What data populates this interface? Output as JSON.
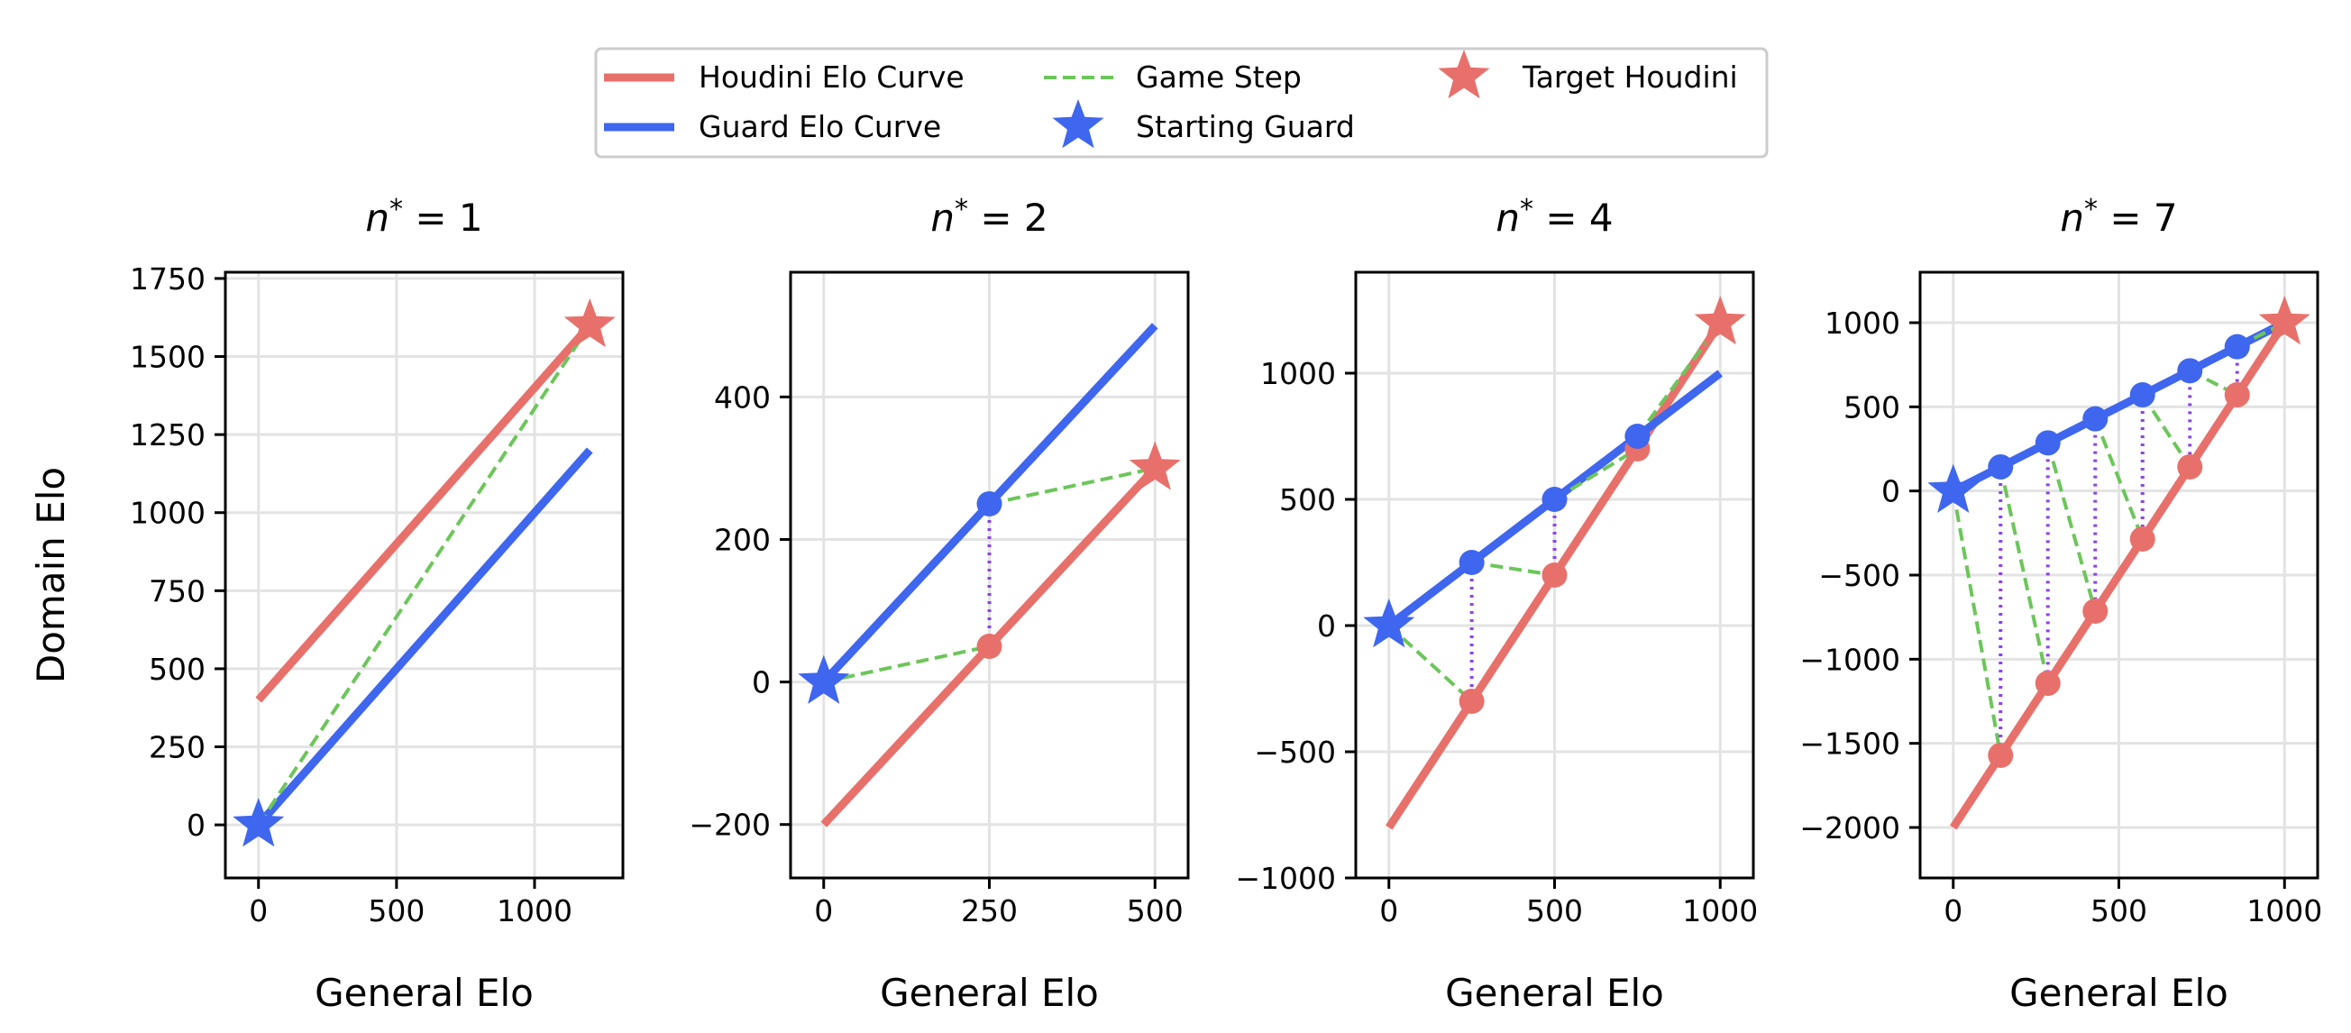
{
  "colors": {
    "houdini": "#e8706b",
    "guard": "#3f66ee",
    "game_step": "#6cc65a",
    "link": "#8b44ee",
    "grid": "#e3e3e3"
  },
  "legend": {
    "placement": "top-center",
    "items": [
      {
        "label": "Houdini Elo Curve",
        "kind": "line",
        "color": "#e8706b"
      },
      {
        "label": "Game Step",
        "kind": "dashed",
        "color": "#6cc65a"
      },
      {
        "label": "Target Houdini",
        "kind": "star",
        "color": "#e8706b"
      },
      {
        "label": "Guard Elo Curve",
        "kind": "line",
        "color": "#3f66ee"
      },
      {
        "label": "Starting Guard",
        "kind": "star",
        "color": "#3f66ee"
      }
    ]
  },
  "chart_data": [
    {
      "type": "line",
      "title": "n* = 1",
      "title_main": "n",
      "title_sup": "*",
      "title_rest": " = 1",
      "xlabel": "General Elo",
      "ylabel": "Domain Elo",
      "xlim": [
        -120,
        1320
      ],
      "ylim": [
        -170,
        1770
      ],
      "xticks": [
        0,
        500,
        1000
      ],
      "yticks": [
        0,
        250,
        500,
        750,
        1000,
        1250,
        1500,
        1750
      ],
      "grid": true,
      "houdini": {
        "x": [
          0,
          1200
        ],
        "y": [
          400,
          1600
        ]
      },
      "guard": {
        "x": [
          0,
          1200
        ],
        "y": [
          0,
          1200
        ]
      },
      "guard_points": [],
      "houdini_points": [],
      "game_steps": [
        [
          0,
          0,
          1200,
          1600
        ]
      ],
      "links": [],
      "start_star": [
        0,
        0
      ],
      "target_star": [
        1200,
        1600
      ]
    },
    {
      "type": "line",
      "title": "n* = 2",
      "title_main": "n",
      "title_sup": "*",
      "title_rest": " = 2",
      "xlabel": "General Elo",
      "ylabel": "",
      "xlim": [
        -50,
        550
      ],
      "ylim": [
        -275,
        575
      ],
      "xticks": [
        0,
        250,
        500
      ],
      "yticks": [
        -200,
        0,
        200,
        400
      ],
      "grid": true,
      "houdini": {
        "x": [
          0,
          500
        ],
        "y": [
          -200,
          300
        ]
      },
      "guard": {
        "x": [
          0,
          500
        ],
        "y": [
          0,
          500
        ]
      },
      "guard_points": [
        [
          250,
          250
        ]
      ],
      "houdini_points": [
        [
          250,
          50
        ]
      ],
      "game_steps": [
        [
          0,
          0,
          250,
          50
        ],
        [
          250,
          250,
          500,
          300
        ]
      ],
      "links": [
        [
          250,
          250,
          250,
          50
        ]
      ],
      "start_star": [
        0,
        0
      ],
      "target_star": [
        500,
        300
      ]
    },
    {
      "type": "line",
      "title": "n* = 4",
      "title_main": "n",
      "title_sup": "*",
      "title_rest": " = 4",
      "xlabel": "General Elo",
      "ylabel": "",
      "xlim": [
        -100,
        1100
      ],
      "ylim": [
        -1000,
        1400
      ],
      "xticks": [
        0,
        500,
        1000
      ],
      "yticks": [
        -1000,
        -500,
        0,
        500,
        1000
      ],
      "grid": true,
      "houdini": {
        "x": [
          0,
          1000
        ],
        "y": [
          -800,
          1200
        ]
      },
      "guard": {
        "x": [
          0,
          1000
        ],
        "y": [
          0,
          1000
        ]
      },
      "guard_points": [
        [
          250,
          250
        ],
        [
          500,
          500
        ],
        [
          750,
          750
        ]
      ],
      "houdini_points": [
        [
          250,
          -300
        ],
        [
          500,
          200
        ],
        [
          750,
          700
        ]
      ],
      "game_steps": [
        [
          0,
          0,
          250,
          -300
        ],
        [
          250,
          250,
          500,
          200
        ],
        [
          500,
          500,
          750,
          700
        ],
        [
          750,
          750,
          1000,
          1200
        ]
      ],
      "links": [
        [
          250,
          250,
          250,
          -300
        ],
        [
          500,
          500,
          500,
          200
        ],
        [
          750,
          750,
          750,
          700
        ]
      ],
      "start_star": [
        0,
        0
      ],
      "target_star": [
        1000,
        1200
      ]
    },
    {
      "type": "line",
      "title": "n* = 7",
      "title_main": "n",
      "title_sup": "*",
      "title_rest": " = 7",
      "xlabel": "General Elo",
      "ylabel": "",
      "xlim": [
        -100,
        1100
      ],
      "ylim": [
        -2300,
        1300
      ],
      "xticks": [
        0,
        500,
        1000
      ],
      "yticks": [
        -2000,
        -1500,
        -1000,
        -500,
        0,
        500,
        1000
      ],
      "grid": true,
      "houdini": {
        "x": [
          0,
          1000
        ],
        "y": [
          -2000,
          1000
        ]
      },
      "guard": {
        "x": [
          0,
          1000
        ],
        "y": [
          0,
          1000
        ]
      },
      "guard_points": [
        [
          142.9,
          142.9
        ],
        [
          285.7,
          285.7
        ],
        [
          428.6,
          428.6
        ],
        [
          571.4,
          571.4
        ],
        [
          714.3,
          714.3
        ],
        [
          857.1,
          857.1
        ]
      ],
      "houdini_points": [
        [
          142.9,
          -1571.4
        ],
        [
          285.7,
          -1142.9
        ],
        [
          428.6,
          -714.3
        ],
        [
          571.4,
          -285.7
        ],
        [
          714.3,
          142.9
        ],
        [
          857.1,
          571.4
        ]
      ],
      "game_steps": [
        [
          0,
          0,
          142.9,
          -1571.4
        ],
        [
          142.9,
          142.9,
          285.7,
          -1142.9
        ],
        [
          285.7,
          285.7,
          428.6,
          -714.3
        ],
        [
          428.6,
          428.6,
          571.4,
          -285.7
        ],
        [
          571.4,
          571.4,
          714.3,
          142.9
        ],
        [
          714.3,
          714.3,
          857.1,
          571.4
        ],
        [
          857.1,
          857.1,
          1000,
          1000
        ]
      ],
      "links": [
        [
          142.9,
          142.9,
          142.9,
          -1571.4
        ],
        [
          285.7,
          285.7,
          285.7,
          -1142.9
        ],
        [
          428.6,
          428.6,
          428.6,
          -714.3
        ],
        [
          571.4,
          571.4,
          571.4,
          -285.7
        ],
        [
          714.3,
          714.3,
          714.3,
          142.9
        ],
        [
          857.1,
          857.1,
          857.1,
          571.4
        ]
      ],
      "start_star": [
        0,
        0
      ],
      "target_star": [
        1000,
        1000
      ]
    }
  ]
}
